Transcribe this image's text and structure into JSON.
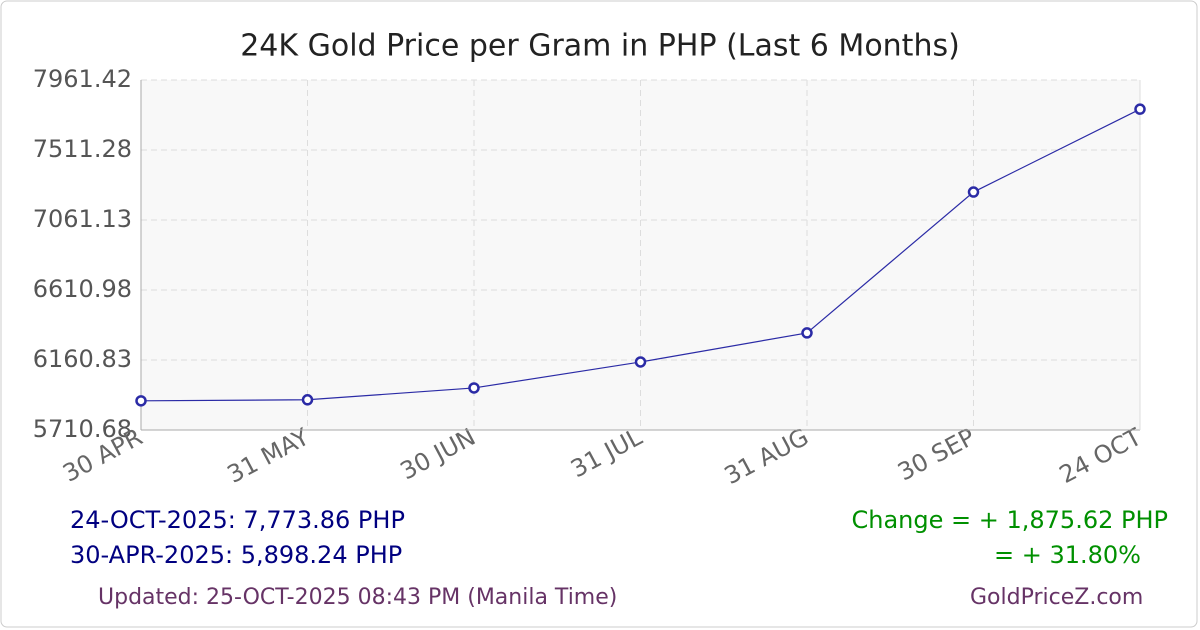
{
  "chart_data": {
    "type": "line",
    "title": "24K Gold Price per Gram in PHP (Last 6 Months)",
    "categories": [
      "30 APR",
      "31 MAY",
      "30 JUN",
      "31 JUL",
      "31 AUG",
      "30 SEP",
      "24 OCT"
    ],
    "series": [
      {
        "name": "24K Gold Price",
        "color": "#2b2ba6",
        "values": [
          5898.24,
          5905,
          5981,
          6148,
          6335,
          7241,
          7773.86
        ]
      }
    ],
    "ylim": [
      5710.68,
      7961.42
    ],
    "yticks": [
      5710.68,
      6160.83,
      6610.98,
      7061.13,
      7511.28,
      7961.42
    ],
    "grid": true
  },
  "footer": {
    "latest": "24-OCT-2025: 7,773.86 PHP",
    "first": "30-APR-2025: 5,898.24 PHP",
    "change": "Change = + 1,875.62 PHP",
    "change_pct": "= + 31.80%",
    "updated": "Updated: 25-OCT-2025 08:43 PM (Manila Time)",
    "source": "GoldPriceZ.com"
  }
}
